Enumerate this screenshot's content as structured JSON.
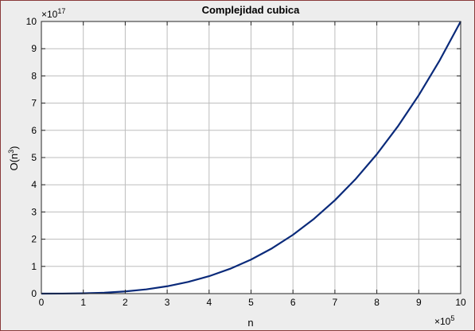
{
  "chart_data": {
    "type": "line",
    "title": "Complejidad cubica",
    "xlabel": "n",
    "ylabel_base": "O(n",
    "ylabel_sup": "3",
    "ylabel_close": ")",
    "x_multiplier_base": "×10",
    "x_multiplier_exp": "5",
    "y_multiplier_base": "×10",
    "y_multiplier_exp": "17",
    "xlim": [
      0,
      10
    ],
    "ylim": [
      0,
      10
    ],
    "xticks": [
      "0",
      "1",
      "2",
      "3",
      "4",
      "5",
      "6",
      "7",
      "8",
      "9",
      "10"
    ],
    "yticks": [
      "0",
      "1",
      "2",
      "3",
      "4",
      "5",
      "6",
      "7",
      "8",
      "9",
      "10"
    ],
    "grid": true,
    "series": [
      {
        "color": "#0a2a7a",
        "x": [
          0,
          0.5,
          1,
          1.5,
          2,
          2.5,
          3,
          3.5,
          4,
          4.5,
          5,
          5.5,
          6,
          6.5,
          7,
          7.5,
          8,
          8.5,
          9,
          9.5,
          10
        ],
        "y": [
          0,
          0.00125,
          0.01,
          0.03375,
          0.08,
          0.15625,
          0.27,
          0.42875,
          0.64,
          0.91125,
          1.25,
          1.66375,
          2.16,
          2.74625,
          3.43,
          4.21875,
          5.12,
          6.14125,
          7.29,
          8.57375,
          10
        ]
      }
    ]
  }
}
